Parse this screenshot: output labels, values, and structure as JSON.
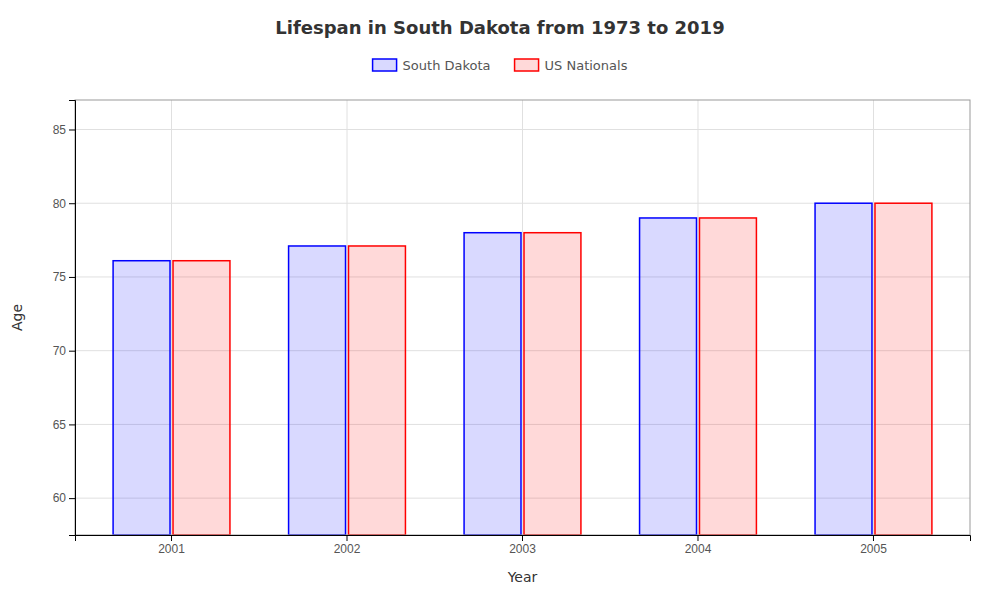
{
  "chart_data": {
    "type": "bar",
    "title": "Lifespan in South Dakota from 1973 to 2019",
    "xlabel": "Year",
    "ylabel": "Age",
    "categories": [
      "2001",
      "2002",
      "2003",
      "2004",
      "2005"
    ],
    "series": [
      {
        "name": "South Dakota",
        "color": "#0000ff",
        "values": [
          76.1,
          77.1,
          78.0,
          79.0,
          80.0
        ]
      },
      {
        "name": "US Nationals",
        "color": "#ff0000",
        "values": [
          76.1,
          77.1,
          78.0,
          79.0,
          80.0
        ]
      }
    ],
    "ylim": [
      57.5,
      87
    ],
    "yticks": [
      60,
      65,
      70,
      75,
      80,
      85
    ],
    "grid": true,
    "legend": "top"
  }
}
